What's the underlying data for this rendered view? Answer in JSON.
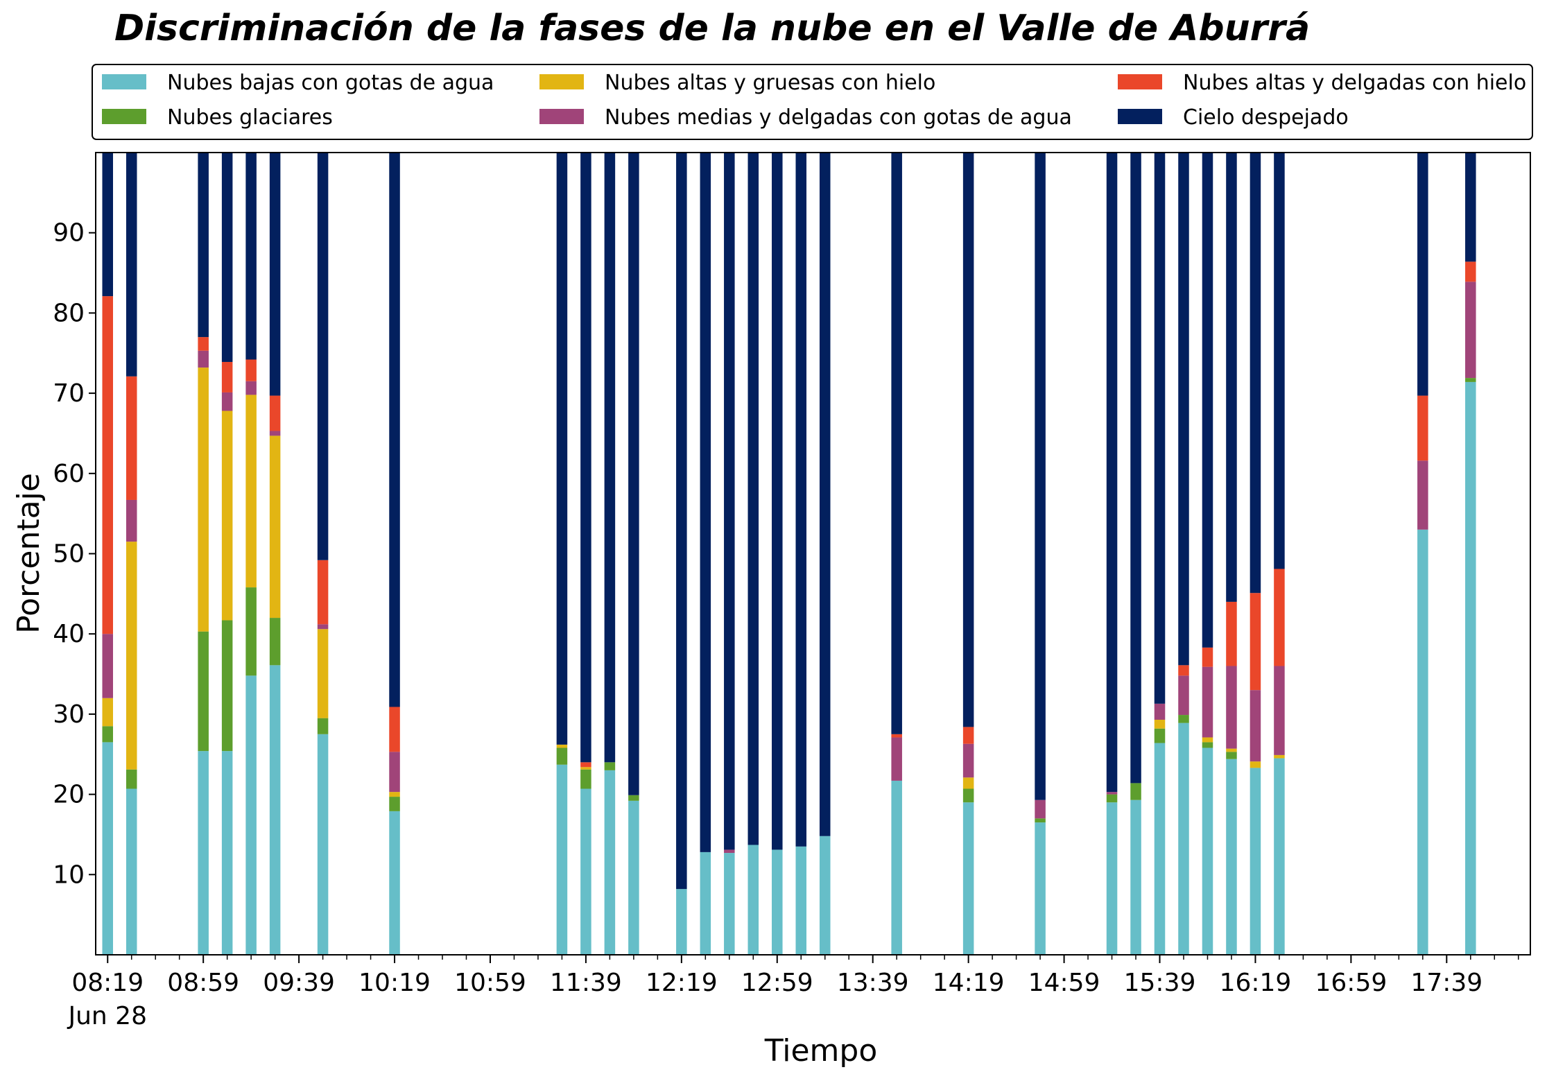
{
  "chart_data": {
    "type": "bar",
    "stacked": true,
    "title": "Discriminación de la fases de la nube en el Valle de Aburrá",
    "xlabel": "Tiempo",
    "ylabel": "Porcentaje",
    "ylim": [
      0,
      100
    ],
    "yticks": [
      10,
      20,
      30,
      40,
      50,
      60,
      70,
      80,
      90
    ],
    "xlim": [
      "08:14",
      "18:14"
    ],
    "bar_width_minutes": 4.5,
    "grid": false,
    "legend_position": "top",
    "x_ticks": [
      {
        "time": "08:19",
        "label": "08:19",
        "sublabel": "Jun 28"
      },
      {
        "time": "08:59",
        "label": "08:59"
      },
      {
        "time": "09:39",
        "label": "09:39"
      },
      {
        "time": "10:19",
        "label": "10:19"
      },
      {
        "time": "10:59",
        "label": "10:59"
      },
      {
        "time": "11:39",
        "label": "11:39"
      },
      {
        "time": "12:19",
        "label": "12:19"
      },
      {
        "time": "12:59",
        "label": "12:59"
      },
      {
        "time": "13:39",
        "label": "13:39"
      },
      {
        "time": "14:19",
        "label": "14:19"
      },
      {
        "time": "14:59",
        "label": "14:59"
      },
      {
        "time": "15:39",
        "label": "15:39"
      },
      {
        "time": "16:19",
        "label": "16:19"
      },
      {
        "time": "16:59",
        "label": "16:59"
      },
      {
        "time": "17:39",
        "label": "17:39"
      }
    ],
    "x_minor_ticks": [
      "08:29",
      "08:39",
      "08:49",
      "09:09",
      "09:19",
      "09:29",
      "09:49",
      "09:59",
      "10:09",
      "10:29",
      "10:39",
      "10:49",
      "11:09",
      "11:19",
      "11:29",
      "11:49",
      "11:59",
      "12:09",
      "12:29",
      "12:39",
      "12:49",
      "13:09",
      "13:19",
      "13:29",
      "13:49",
      "13:59",
      "14:09",
      "14:29",
      "14:39",
      "14:49",
      "15:09",
      "15:19",
      "15:29",
      "15:49",
      "15:59",
      "16:09",
      "16:29",
      "16:39",
      "16:49",
      "17:09",
      "17:19",
      "17:29",
      "17:49",
      "17:59",
      "18:09"
    ],
    "x": [
      "08:19",
      "08:29",
      "08:59",
      "09:09",
      "09:19",
      "09:29",
      "09:49",
      "10:19",
      "11:29",
      "11:39",
      "11:49",
      "11:59",
      "12:19",
      "12:29",
      "12:39",
      "12:49",
      "12:59",
      "13:09",
      "13:19",
      "13:49",
      "14:19",
      "14:49",
      "15:19",
      "15:29",
      "15:39",
      "15:49",
      "15:59",
      "16:09",
      "16:19",
      "16:29",
      "17:29",
      "17:49"
    ],
    "series": [
      {
        "name": "Nubes bajas con gotas de agua",
        "color": "#66bec8",
        "values": [
          26.5,
          20.7,
          25.4,
          25.4,
          34.8,
          36.1,
          27.5,
          17.9,
          23.7,
          20.7,
          23.0,
          19.2,
          8.2,
          12.8,
          12.7,
          13.7,
          13.1,
          13.5,
          14.8,
          21.7,
          19.0,
          16.5,
          19.0,
          19.3,
          26.4,
          28.9,
          25.8,
          24.4,
          23.3,
          24.5,
          53.0,
          71.4
        ]
      },
      {
        "name": "Nubes glaciares",
        "color": "#5d9e2d",
        "values": [
          2.0,
          2.4,
          14.9,
          16.3,
          11.0,
          5.9,
          2.0,
          1.8,
          2.1,
          2.4,
          1.0,
          0.7,
          0,
          0,
          0,
          0,
          0,
          0,
          0,
          0,
          1.7,
          0.5,
          1.0,
          2.1,
          1.8,
          1.0,
          0.7,
          0.9,
          0,
          0,
          0,
          0.5
        ]
      },
      {
        "name": "Nubes altas y gruesas con hielo",
        "color": "#e2b513",
        "values": [
          3.5,
          28.4,
          32.9,
          26.1,
          24.0,
          22.7,
          11.1,
          0.6,
          0.4,
          0.3,
          0,
          0,
          0,
          0,
          0,
          0,
          0,
          0,
          0,
          0,
          1.4,
          0,
          0,
          0,
          1.1,
          0,
          0.6,
          0.4,
          0.8,
          0.4,
          0,
          0
        ]
      },
      {
        "name": "Nubes medias y delgadas con gotas de agua",
        "color": "#a04479",
        "values": [
          8.0,
          5.2,
          2.1,
          2.3,
          1.7,
          0.6,
          0.6,
          5.0,
          0,
          0,
          0,
          0,
          0,
          0,
          0.4,
          0,
          0,
          0,
          0,
          5.4,
          4.2,
          2.3,
          0.3,
          0,
          2.0,
          4.9,
          8.8,
          10.3,
          8.9,
          11.1,
          8.6,
          12.0
        ]
      },
      {
        "name": "Nubes altas y delgadas con hielo",
        "color": "#ea472a",
        "values": [
          42.1,
          15.4,
          1.7,
          3.8,
          2.7,
          4.4,
          8.0,
          5.6,
          0,
          0.6,
          0,
          0,
          0,
          0,
          0,
          0,
          0,
          0,
          0,
          0.4,
          2.1,
          0,
          0,
          0,
          0,
          1.3,
          2.4,
          8.0,
          12.1,
          12.1,
          8.1,
          2.5
        ]
      },
      {
        "name": "Cielo despejado",
        "color": "#03205e",
        "values": [
          17.9,
          27.9,
          23.0,
          26.1,
          25.8,
          30.3,
          50.8,
          69.1,
          73.8,
          76.0,
          76.0,
          80.1,
          91.8,
          87.2,
          86.9,
          86.3,
          86.9,
          86.5,
          85.2,
          72.5,
          71.6,
          80.7,
          79.7,
          78.6,
          68.7,
          63.9,
          61.7,
          56.0,
          54.9,
          51.9,
          30.3,
          13.6
        ]
      }
    ]
  }
}
